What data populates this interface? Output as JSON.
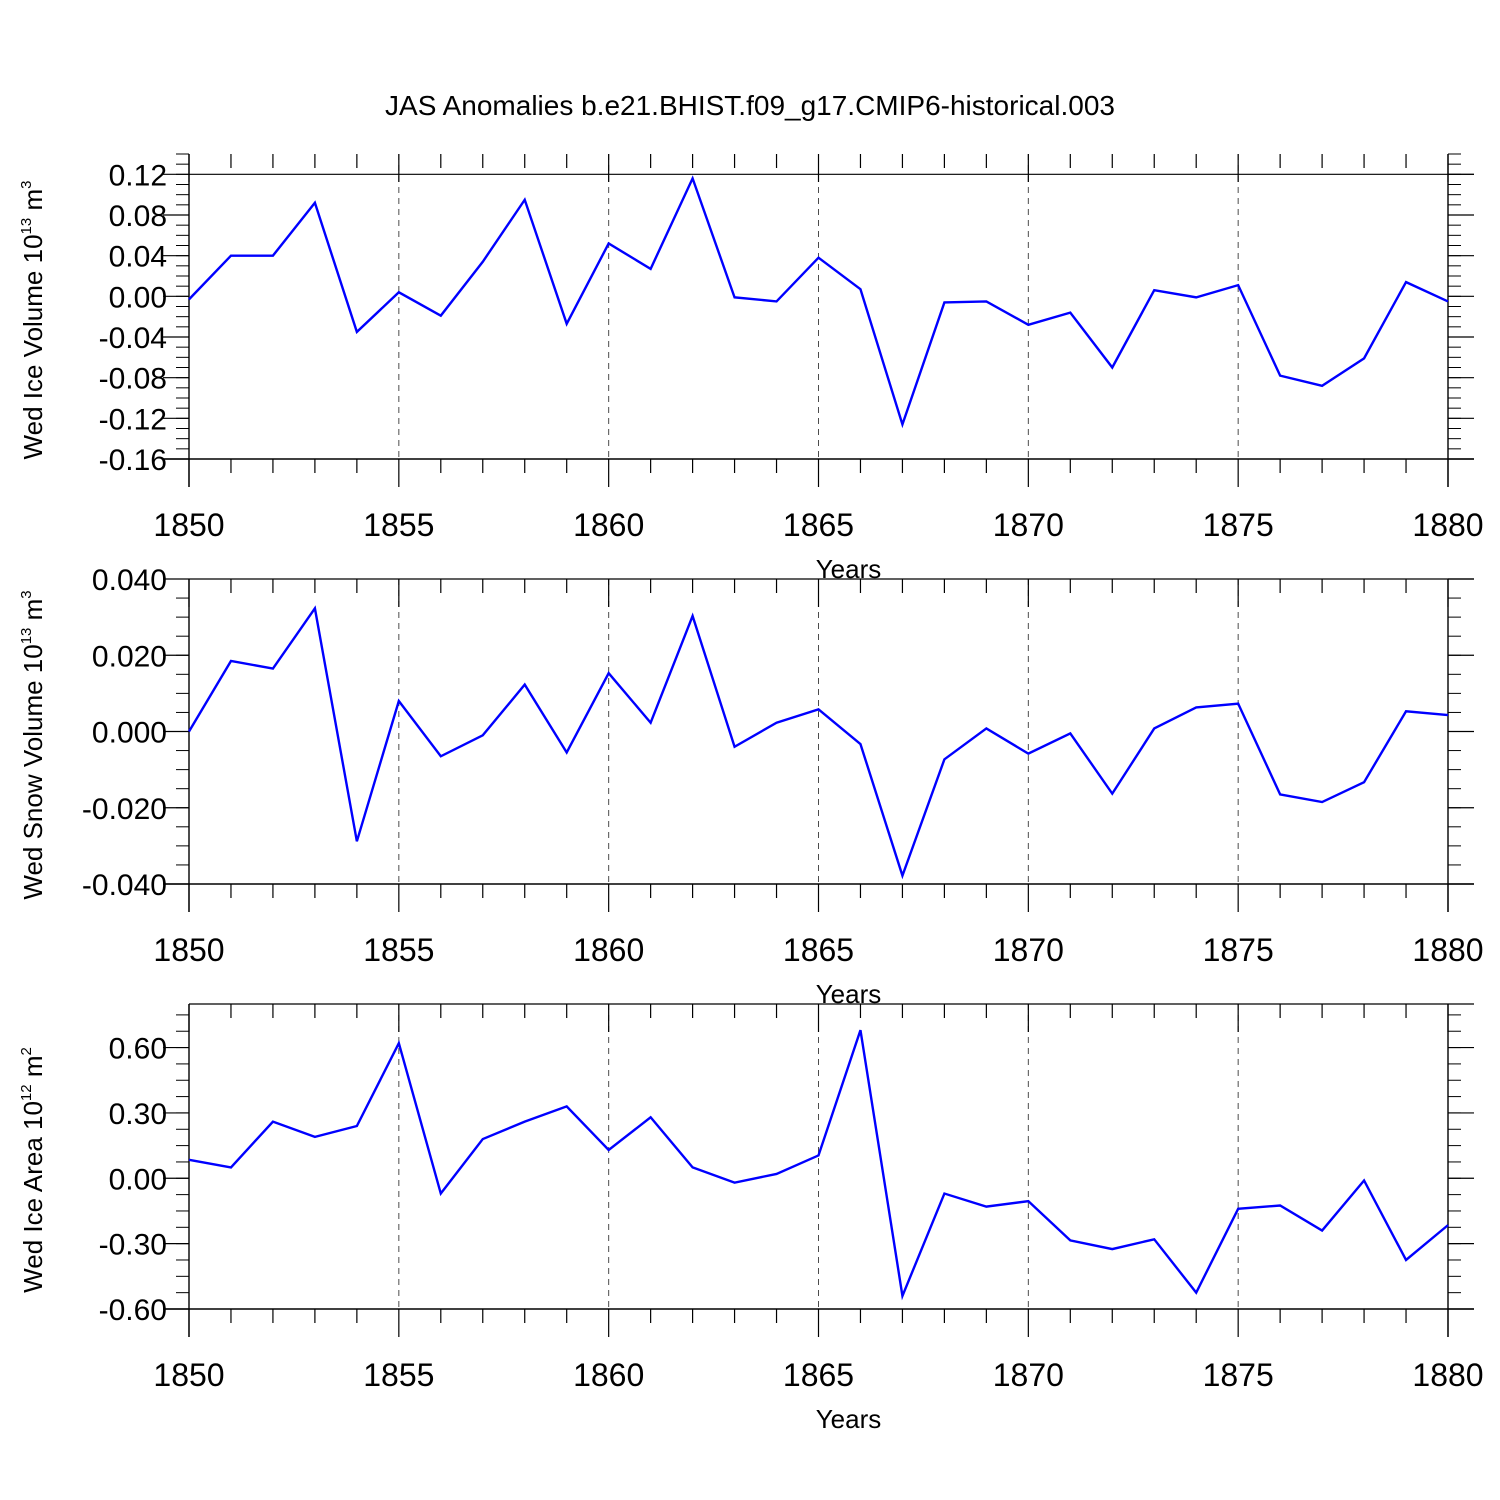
{
  "title": "JAS Anomalies b.e21.BHIST.f09_g17.CMIP6-historical.003",
  "chart_data": [
    {
      "type": "line",
      "ylabel": "Wed Ice Volume 10",
      "ylabel_exp": "13",
      "ylabel_unit": " m",
      "ylabel_unit_exp": "3",
      "xlabel": "Years",
      "xlim": [
        1850,
        1880
      ],
      "ylim": [
        -0.16,
        0.14
      ],
      "y_ticks": [
        0.12,
        0.08,
        0.04,
        0.0,
        -0.04,
        -0.08,
        -0.12,
        -0.16
      ],
      "y_tick_labels": [
        "0.12",
        "0.08",
        "0.04",
        "0.00",
        "-0.04",
        "-0.08",
        "-0.12",
        "-0.16"
      ],
      "x_ticks": [
        1850,
        1855,
        1860,
        1865,
        1870,
        1875,
        1880
      ],
      "x_tick_labels": [
        "1850",
        "1855",
        "1860",
        "1865",
        "1870",
        "1875",
        "1880"
      ],
      "ref_line": 0.12,
      "x": [
        1850,
        1851,
        1852,
        1853,
        1854,
        1855,
        1856,
        1857,
        1858,
        1859,
        1860,
        1861,
        1862,
        1863,
        1864,
        1865,
        1866,
        1867,
        1868,
        1869,
        1870,
        1871,
        1872,
        1873,
        1874,
        1875,
        1876,
        1877,
        1878,
        1879,
        1880
      ],
      "series": [
        {
          "name": "Wed Ice Volume",
          "color": "#0000ff",
          "values": [
            -0.003,
            0.04,
            0.04,
            0.092,
            -0.035,
            0.004,
            -0.019,
            0.034,
            0.095,
            -0.027,
            0.052,
            0.027,
            0.116,
            -0.001,
            -0.005,
            0.038,
            0.007,
            -0.126,
            -0.006,
            -0.005,
            -0.028,
            -0.016,
            -0.07,
            0.006,
            -0.001,
            0.011,
            -0.078,
            -0.088,
            -0.061,
            0.014,
            -0.005
          ]
        }
      ]
    },
    {
      "type": "line",
      "ylabel": "Wed Snow Volume 10",
      "ylabel_exp": "13",
      "ylabel_unit": " m",
      "ylabel_unit_exp": "3",
      "xlabel": "Years",
      "xlim": [
        1850,
        1880
      ],
      "ylim": [
        -0.04,
        0.04
      ],
      "y_ticks": [
        0.04,
        0.02,
        0.0,
        -0.02,
        -0.04
      ],
      "y_tick_labels": [
        "0.040",
        "0.020",
        "0.000",
        "-0.020",
        "-0.040"
      ],
      "x_ticks": [
        1850,
        1855,
        1860,
        1865,
        1870,
        1875,
        1880
      ],
      "x_tick_labels": [
        "1850",
        "1855",
        "1860",
        "1865",
        "1870",
        "1875",
        "1880"
      ],
      "ref_line": 0.04,
      "x": [
        1850,
        1851,
        1852,
        1853,
        1854,
        1855,
        1856,
        1857,
        1858,
        1859,
        1860,
        1861,
        1862,
        1863,
        1864,
        1865,
        1866,
        1867,
        1868,
        1869,
        1870,
        1871,
        1872,
        1873,
        1874,
        1875,
        1876,
        1877,
        1878,
        1879,
        1880
      ],
      "series": [
        {
          "name": "Wed Snow Volume",
          "color": "#0000ff",
          "values": [
            0.0,
            0.0185,
            0.0165,
            0.0323,
            -0.0288,
            0.008,
            -0.0065,
            -0.001,
            0.0123,
            -0.0055,
            0.0153,
            0.0023,
            0.0303,
            -0.004,
            0.0023,
            0.0058,
            -0.0033,
            -0.0378,
            -0.0073,
            0.0008,
            -0.0058,
            -0.0005,
            -0.0163,
            0.0008,
            0.0063,
            0.0073,
            -0.0165,
            -0.0185,
            -0.0133,
            0.0053,
            0.0043
          ]
        }
      ]
    },
    {
      "type": "line",
      "ylabel": "Wed Ice Area 10",
      "ylabel_exp": "12",
      "ylabel_unit": " m",
      "ylabel_unit_exp": "2",
      "xlabel": "Years",
      "xlim": [
        1850,
        1880
      ],
      "ylim": [
        -0.6,
        0.8
      ],
      "y_ticks": [
        0.6,
        0.3,
        0.0,
        -0.3,
        -0.6
      ],
      "y_tick_labels": [
        "0.60",
        "0.30",
        "0.00",
        "-0.30",
        "-0.60"
      ],
      "x_ticks": [
        1850,
        1855,
        1860,
        1865,
        1870,
        1875,
        1880
      ],
      "x_tick_labels": [
        "1850",
        "1855",
        "1860",
        "1865",
        "1870",
        "1875",
        "1880"
      ],
      "ref_line": 0.8,
      "x": [
        1850,
        1851,
        1852,
        1853,
        1854,
        1855,
        1856,
        1857,
        1858,
        1859,
        1860,
        1861,
        1862,
        1863,
        1864,
        1865,
        1866,
        1867,
        1868,
        1869,
        1870,
        1871,
        1872,
        1873,
        1874,
        1875,
        1876,
        1877,
        1878,
        1879,
        1880
      ],
      "series": [
        {
          "name": "Wed Ice Area",
          "color": "#0000ff",
          "values": [
            0.085,
            0.05,
            0.26,
            0.19,
            0.24,
            0.62,
            -0.07,
            0.18,
            0.26,
            0.33,
            0.13,
            0.28,
            0.05,
            -0.02,
            0.02,
            0.105,
            0.68,
            -0.54,
            -0.07,
            -0.13,
            -0.105,
            -0.285,
            -0.325,
            -0.28,
            -0.525,
            -0.14,
            -0.125,
            -0.24,
            -0.01,
            -0.375,
            -0.215
          ]
        }
      ]
    }
  ]
}
